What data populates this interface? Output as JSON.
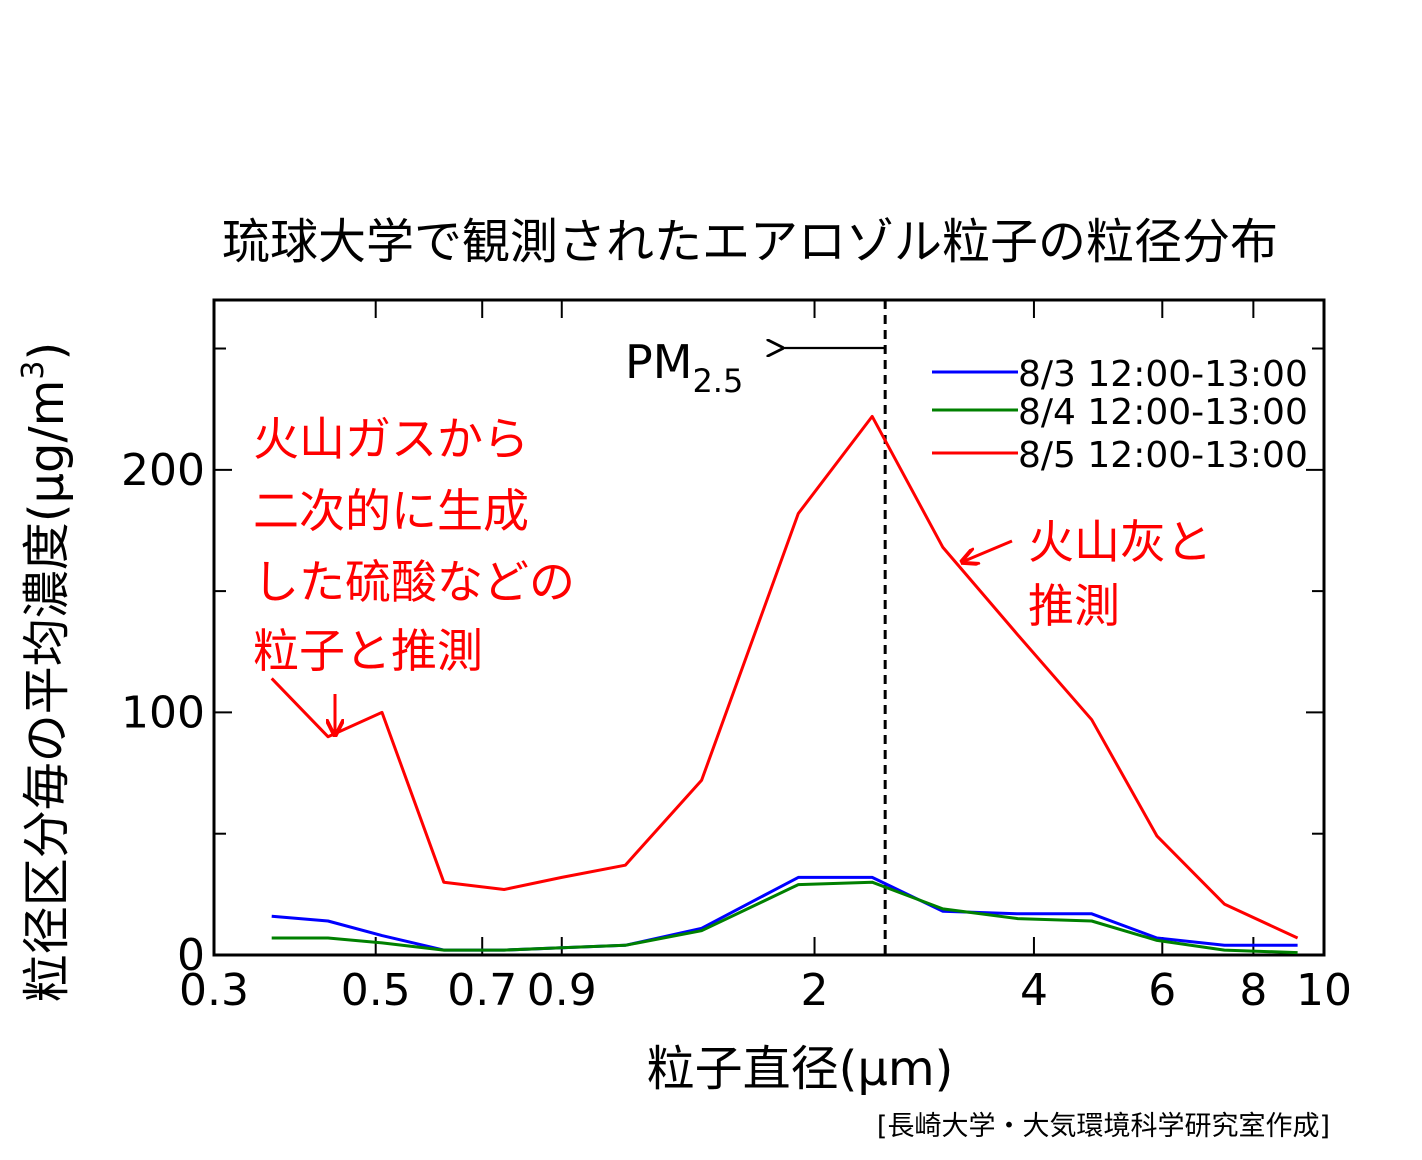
{
  "chart_data": {
    "type": "line",
    "title": "琉球大学で観測されたエアロゾル粒子の粒径分布",
    "xlabel": "粒子直径(μm)",
    "ylabel": "粒径区分毎の平均濃度(μg/m",
    "ylabel_sup": "3",
    "ylabel_close": ")",
    "x_scale": "log",
    "xlim": [
      0.3,
      10
    ],
    "ylim": [
      0,
      270
    ],
    "x_ticks": [
      {
        "value": 0.3,
        "label": "0.3"
      },
      {
        "value": 0.5,
        "label": "0.5"
      },
      {
        "value": 0.7,
        "label": "0.7"
      },
      {
        "value": 0.9,
        "label": "0.9"
      },
      {
        "value": 2,
        "label": "2"
      },
      {
        "value": 4,
        "label": "4"
      },
      {
        "value": 6,
        "label": "6"
      },
      {
        "value": 8,
        "label": "8"
      },
      {
        "value": 10,
        "label": "10"
      }
    ],
    "y_ticks": [
      {
        "value": 0,
        "label": "0"
      },
      {
        "value": 100,
        "label": "100"
      },
      {
        "value": 200,
        "label": "200"
      }
    ],
    "x": [
      0.36,
      0.43,
      0.51,
      0.62,
      0.75,
      0.9,
      1.1,
      1.4,
      1.9,
      2.4,
      3.0,
      3.8,
      4.8,
      5.9,
      7.3,
      9.2
    ],
    "series": [
      {
        "name": "8/3 12:00-13:00",
        "color": "#0000ff",
        "values": [
          16,
          14,
          8,
          2,
          2,
          3,
          4,
          11,
          32,
          32,
          18,
          17,
          17,
          7,
          4,
          4
        ]
      },
      {
        "name": "8/4 12:00-13:00",
        "color": "#008000",
        "values": [
          7,
          7,
          5,
          2,
          2,
          3,
          4,
          10,
          29,
          30,
          19,
          15,
          14,
          6,
          2,
          1
        ]
      },
      {
        "name": "8/5 12:00-13:00",
        "color": "#ff0000",
        "values": [
          114,
          90,
          100,
          30,
          27,
          32,
          37,
          72,
          182,
          222,
          168,
          132,
          97,
          49,
          21,
          7
        ]
      }
    ],
    "reference_line": {
      "x": 2.5,
      "style": "dashed",
      "label": "PM",
      "label_sub": "2.5",
      "arrow": "left"
    },
    "legend_position": "top-right",
    "annotations": [
      {
        "lines": [
          "火山ガスから",
          "二次的に生成",
          "した硫酸などの",
          "粒子と推測"
        ],
        "color": "#ff0000",
        "points_to": {
          "x": 0.43,
          "y": 90
        }
      },
      {
        "lines": [
          "火山灰と",
          "推測"
        ],
        "color": "#ff0000",
        "points_to": {
          "x": 3.0,
          "y": 168
        }
      }
    ],
    "grid": false,
    "source": "[長崎大学・大気環境科学研究室作成]"
  }
}
